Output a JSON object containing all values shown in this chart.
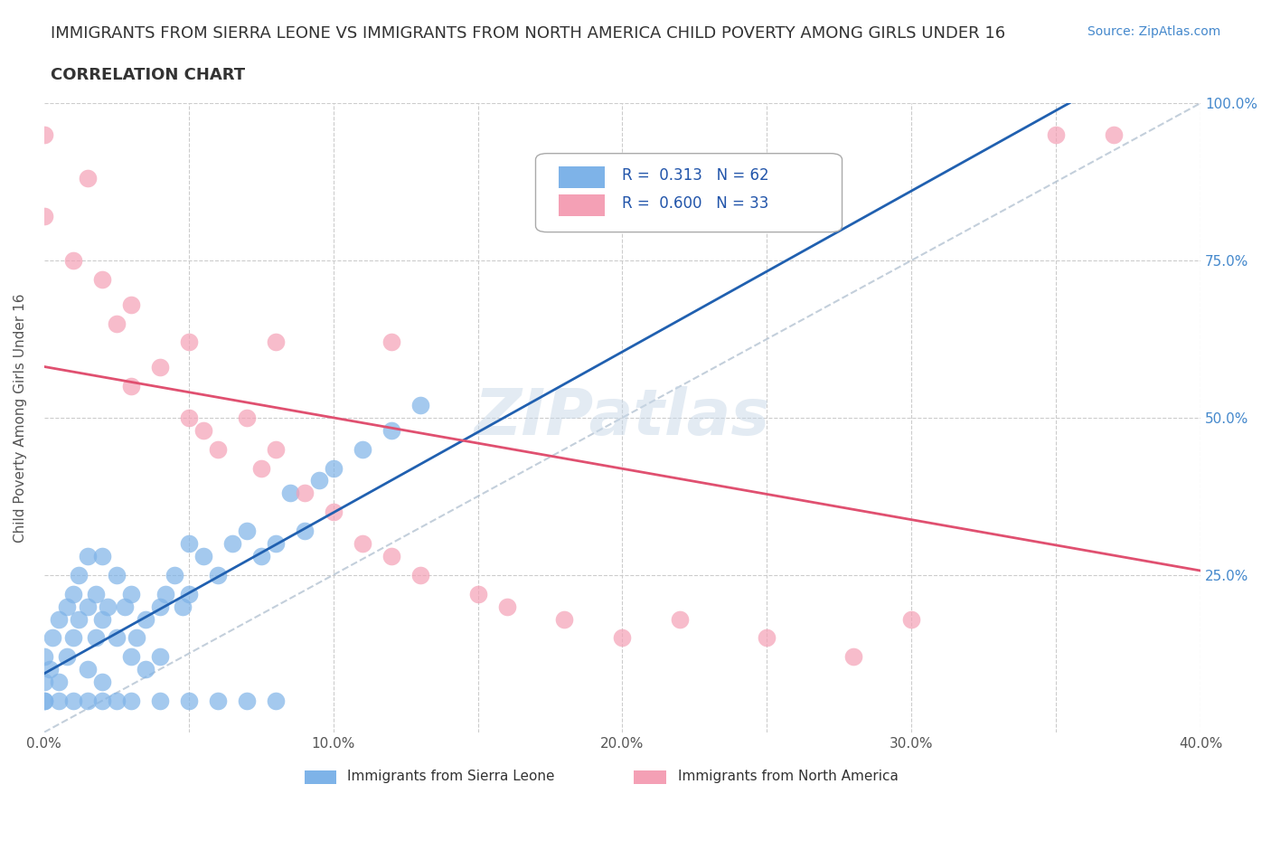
{
  "title": "IMMIGRANTS FROM SIERRA LEONE VS IMMIGRANTS FROM NORTH AMERICA CHILD POVERTY AMONG GIRLS UNDER 16",
  "subtitle": "CORRELATION CHART",
  "source": "Source: ZipAtlas.com",
  "ylabel": "Child Poverty Among Girls Under 16",
  "xlim": [
    0.0,
    0.4
  ],
  "ylim": [
    0.0,
    1.0
  ],
  "xtick_vals": [
    0.0,
    0.05,
    0.1,
    0.15,
    0.2,
    0.25,
    0.3,
    0.35,
    0.4
  ],
  "xticklabels": [
    "0.0%",
    "",
    "10.0%",
    "",
    "20.0%",
    "",
    "30.0%",
    "",
    "40.0%"
  ],
  "ytick_vals": [
    0.0,
    0.25,
    0.5,
    0.75,
    1.0
  ],
  "yticklabels_right": [
    "",
    "25.0%",
    "50.0%",
    "75.0%",
    "100.0%"
  ],
  "legend_r1": "R =  0.313   N = 62",
  "legend_r2": "R =  0.600   N = 33",
  "blue_color": "#7EB3E8",
  "pink_color": "#F4A0B5",
  "blue_line_color": "#2060B0",
  "pink_line_color": "#E05070",
  "right_ytick_color": "#4488CC",
  "legend_text_color": "#2255AA",
  "watermark": "ZIPatlas",
  "sl_x": [
    0.0,
    0.0,
    0.0,
    0.002,
    0.003,
    0.005,
    0.005,
    0.008,
    0.008,
    0.01,
    0.01,
    0.012,
    0.012,
    0.015,
    0.015,
    0.015,
    0.018,
    0.018,
    0.02,
    0.02,
    0.02,
    0.022,
    0.025,
    0.025,
    0.028,
    0.03,
    0.03,
    0.032,
    0.035,
    0.035,
    0.04,
    0.04,
    0.042,
    0.045,
    0.048,
    0.05,
    0.05,
    0.055,
    0.06,
    0.065,
    0.07,
    0.075,
    0.08,
    0.085,
    0.09,
    0.095,
    0.1,
    0.11,
    0.12,
    0.13,
    0.0,
    0.005,
    0.01,
    0.015,
    0.02,
    0.025,
    0.03,
    0.04,
    0.05,
    0.06,
    0.07,
    0.08
  ],
  "sl_y": [
    0.05,
    0.08,
    0.12,
    0.1,
    0.15,
    0.08,
    0.18,
    0.12,
    0.2,
    0.15,
    0.22,
    0.18,
    0.25,
    0.1,
    0.2,
    0.28,
    0.15,
    0.22,
    0.08,
    0.18,
    0.28,
    0.2,
    0.15,
    0.25,
    0.2,
    0.12,
    0.22,
    0.15,
    0.1,
    0.18,
    0.12,
    0.2,
    0.22,
    0.25,
    0.2,
    0.22,
    0.3,
    0.28,
    0.25,
    0.3,
    0.32,
    0.28,
    0.3,
    0.38,
    0.32,
    0.4,
    0.42,
    0.45,
    0.48,
    0.52,
    0.05,
    0.05,
    0.05,
    0.05,
    0.05,
    0.05,
    0.05,
    0.05,
    0.05,
    0.05,
    0.05,
    0.05
  ],
  "na_x": [
    0.0,
    0.0,
    0.01,
    0.015,
    0.02,
    0.025,
    0.03,
    0.03,
    0.04,
    0.05,
    0.055,
    0.06,
    0.07,
    0.075,
    0.08,
    0.09,
    0.1,
    0.11,
    0.12,
    0.13,
    0.15,
    0.16,
    0.18,
    0.2,
    0.22,
    0.25,
    0.28,
    0.3,
    0.35,
    0.37,
    0.12,
    0.08,
    0.05
  ],
  "na_y": [
    0.95,
    0.82,
    0.75,
    0.88,
    0.72,
    0.65,
    0.55,
    0.68,
    0.58,
    0.5,
    0.48,
    0.45,
    0.5,
    0.42,
    0.45,
    0.38,
    0.35,
    0.3,
    0.28,
    0.25,
    0.22,
    0.2,
    0.18,
    0.15,
    0.18,
    0.15,
    0.12,
    0.18,
    0.95,
    0.95,
    0.62,
    0.62,
    0.62
  ]
}
